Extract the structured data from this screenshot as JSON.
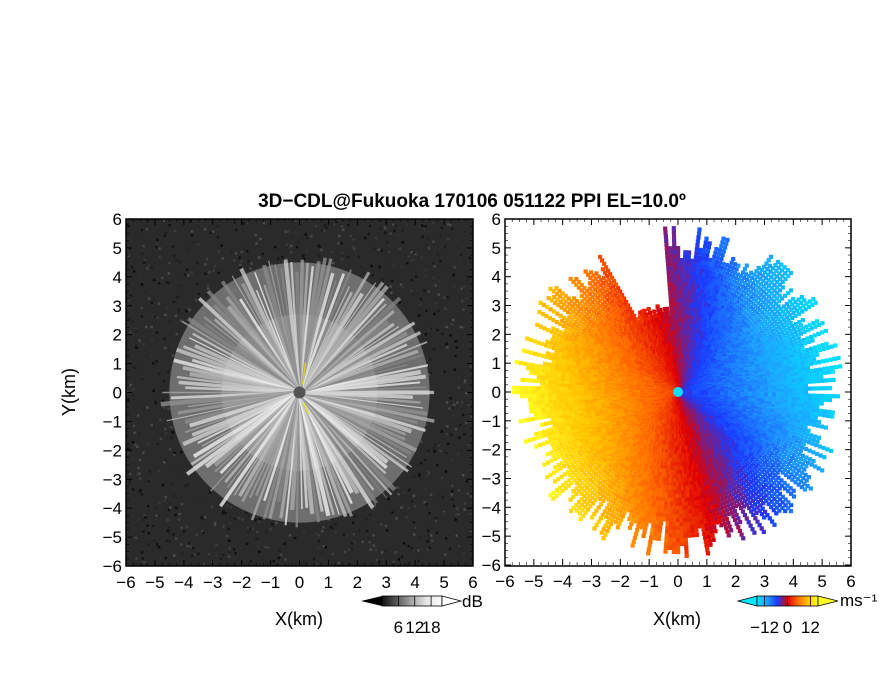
{
  "title": "3D−CDL@Fukuoka 170106 051122 PPI EL=10.0º",
  "chart_data": [
    {
      "type": "heatmap",
      "panel": "left",
      "quantity": "backscatter intensity",
      "xlabel": "X(km)",
      "ylabel": "Y(km)",
      "xlim": [
        -6,
        6
      ],
      "ylim": [
        -6,
        6
      ],
      "x_ticks": [
        "−6",
        "−5",
        "−4",
        "−3",
        "−2",
        "−1",
        "0",
        "1",
        "2",
        "3",
        "4",
        "5",
        "6"
      ],
      "y_ticks": [
        "−6",
        "−5",
        "−4",
        "−3",
        "−2",
        "−1",
        "0",
        "1",
        "2",
        "3",
        "4",
        "5",
        "6"
      ],
      "data_radius_km": 4.5,
      "colormap": "grayscale",
      "colorbar": {
        "unit": "dB",
        "ticks": [
          "6",
          "12",
          "18"
        ],
        "tick_values": [
          6,
          12,
          18
        ],
        "range": [
          0,
          22
        ],
        "colors": [
          "#101010",
          "#5a5a5a",
          "#a8a8a8",
          "#e8e8e8",
          "#fcfcfc"
        ]
      }
    },
    {
      "type": "heatmap",
      "panel": "right",
      "quantity": "radial velocity",
      "xlabel": "X(km)",
      "ylabel": "Y(km)",
      "xlim": [
        -6,
        6
      ],
      "ylim": [
        -6,
        6
      ],
      "x_ticks": [
        "−6",
        "−5",
        "−4",
        "−3",
        "−2",
        "−1",
        "0",
        "1",
        "2",
        "3",
        "4",
        "5",
        "6"
      ],
      "y_ticks": [
        "−6",
        "−5",
        "−4",
        "−3",
        "−2",
        "−1",
        "0",
        "1",
        "2",
        "3",
        "4",
        "5",
        "6"
      ],
      "data_radius_km": 5.8,
      "colormap": "diverging blue-red-yellow",
      "colorbar": {
        "unit": "ms⁻¹",
        "ticks": [
          "−12",
          "0",
          "12"
        ],
        "tick_values": [
          -12,
          0,
          12
        ],
        "range": [
          -16,
          16
        ],
        "colors": [
          "#00e5ff",
          "#1ea0ff",
          "#1a3aff",
          "#e00000",
          "#ff6a00",
          "#ffc000",
          "#ffff20"
        ]
      }
    }
  ]
}
